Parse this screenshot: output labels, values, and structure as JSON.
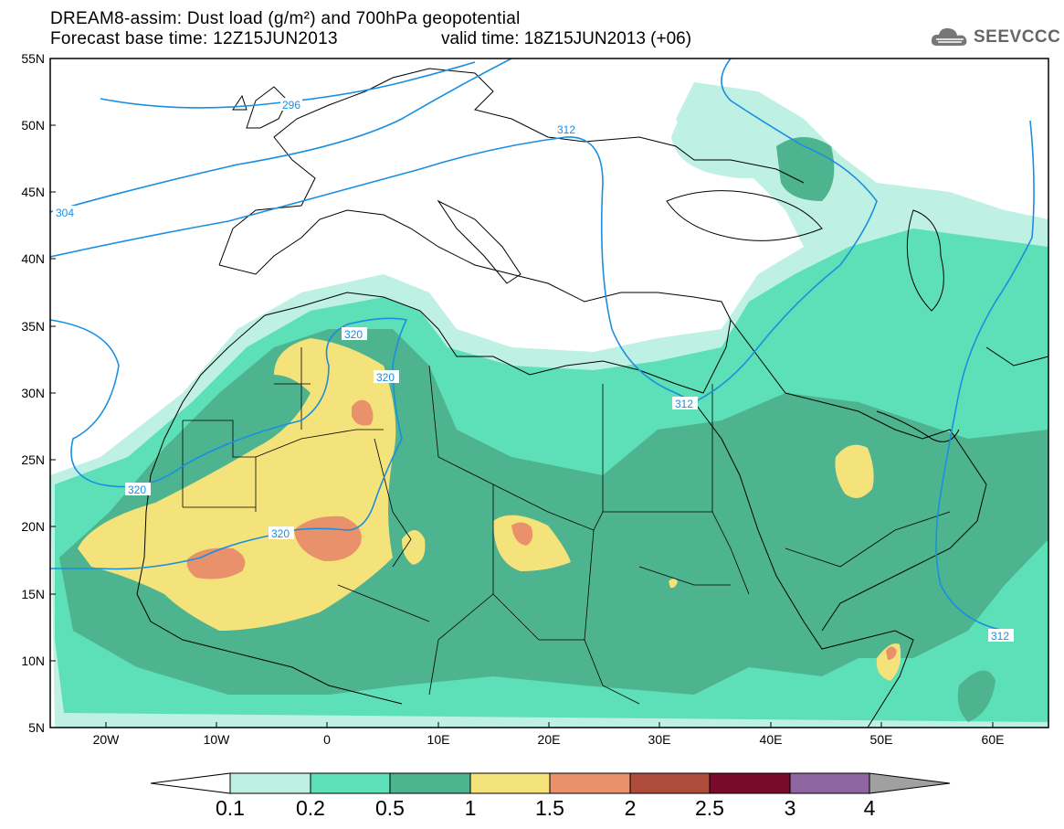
{
  "title_line1": "DREAM8-assim: Dust load (g/m²) and 700hPa geopotential",
  "title_line2": "Forecast base time: 12Z15JUN2013",
  "valid_time": "valid time: 18Z15JUN2013 (+06)",
  "logo_text": "SEEVCCC",
  "lat_labels": [
    "55N",
    "50N",
    "45N",
    "40N",
    "35N",
    "30N",
    "25N",
    "20N",
    "15N",
    "10N",
    "5N"
  ],
  "lon_labels": [
    "20W",
    "10W",
    "0",
    "10E",
    "20E",
    "30E",
    "40E",
    "50E",
    "60E"
  ],
  "contour_labels": [
    "296",
    "304",
    "312",
    "320",
    "320",
    "320",
    "320",
    "312",
    "312"
  ],
  "colorbar": {
    "labels": [
      "0.1",
      "0.2",
      "0.5",
      "1",
      "1.5",
      "2",
      "2.5",
      "3",
      "4"
    ],
    "colors": [
      "#ffffff",
      "#bff0e4",
      "#5ddfb7",
      "#4db48f",
      "#f3e37a",
      "#e8916b",
      "#b04c3c",
      "#780b2a",
      "#8d65a0",
      "#a0a0a0"
    ]
  },
  "colors": {
    "contour": "#1a8fe0",
    "level_0_1": "#bff0e4",
    "level_0_2": "#5ddfb7",
    "level_0_5": "#4db48f",
    "level_1": "#f3e37a",
    "level_1_5": "#e8916b",
    "level_2": "#b04c3c",
    "level_2_5": "#780b2a",
    "level_3": "#8d65a0",
    "level_4": "#a0a0a0"
  }
}
